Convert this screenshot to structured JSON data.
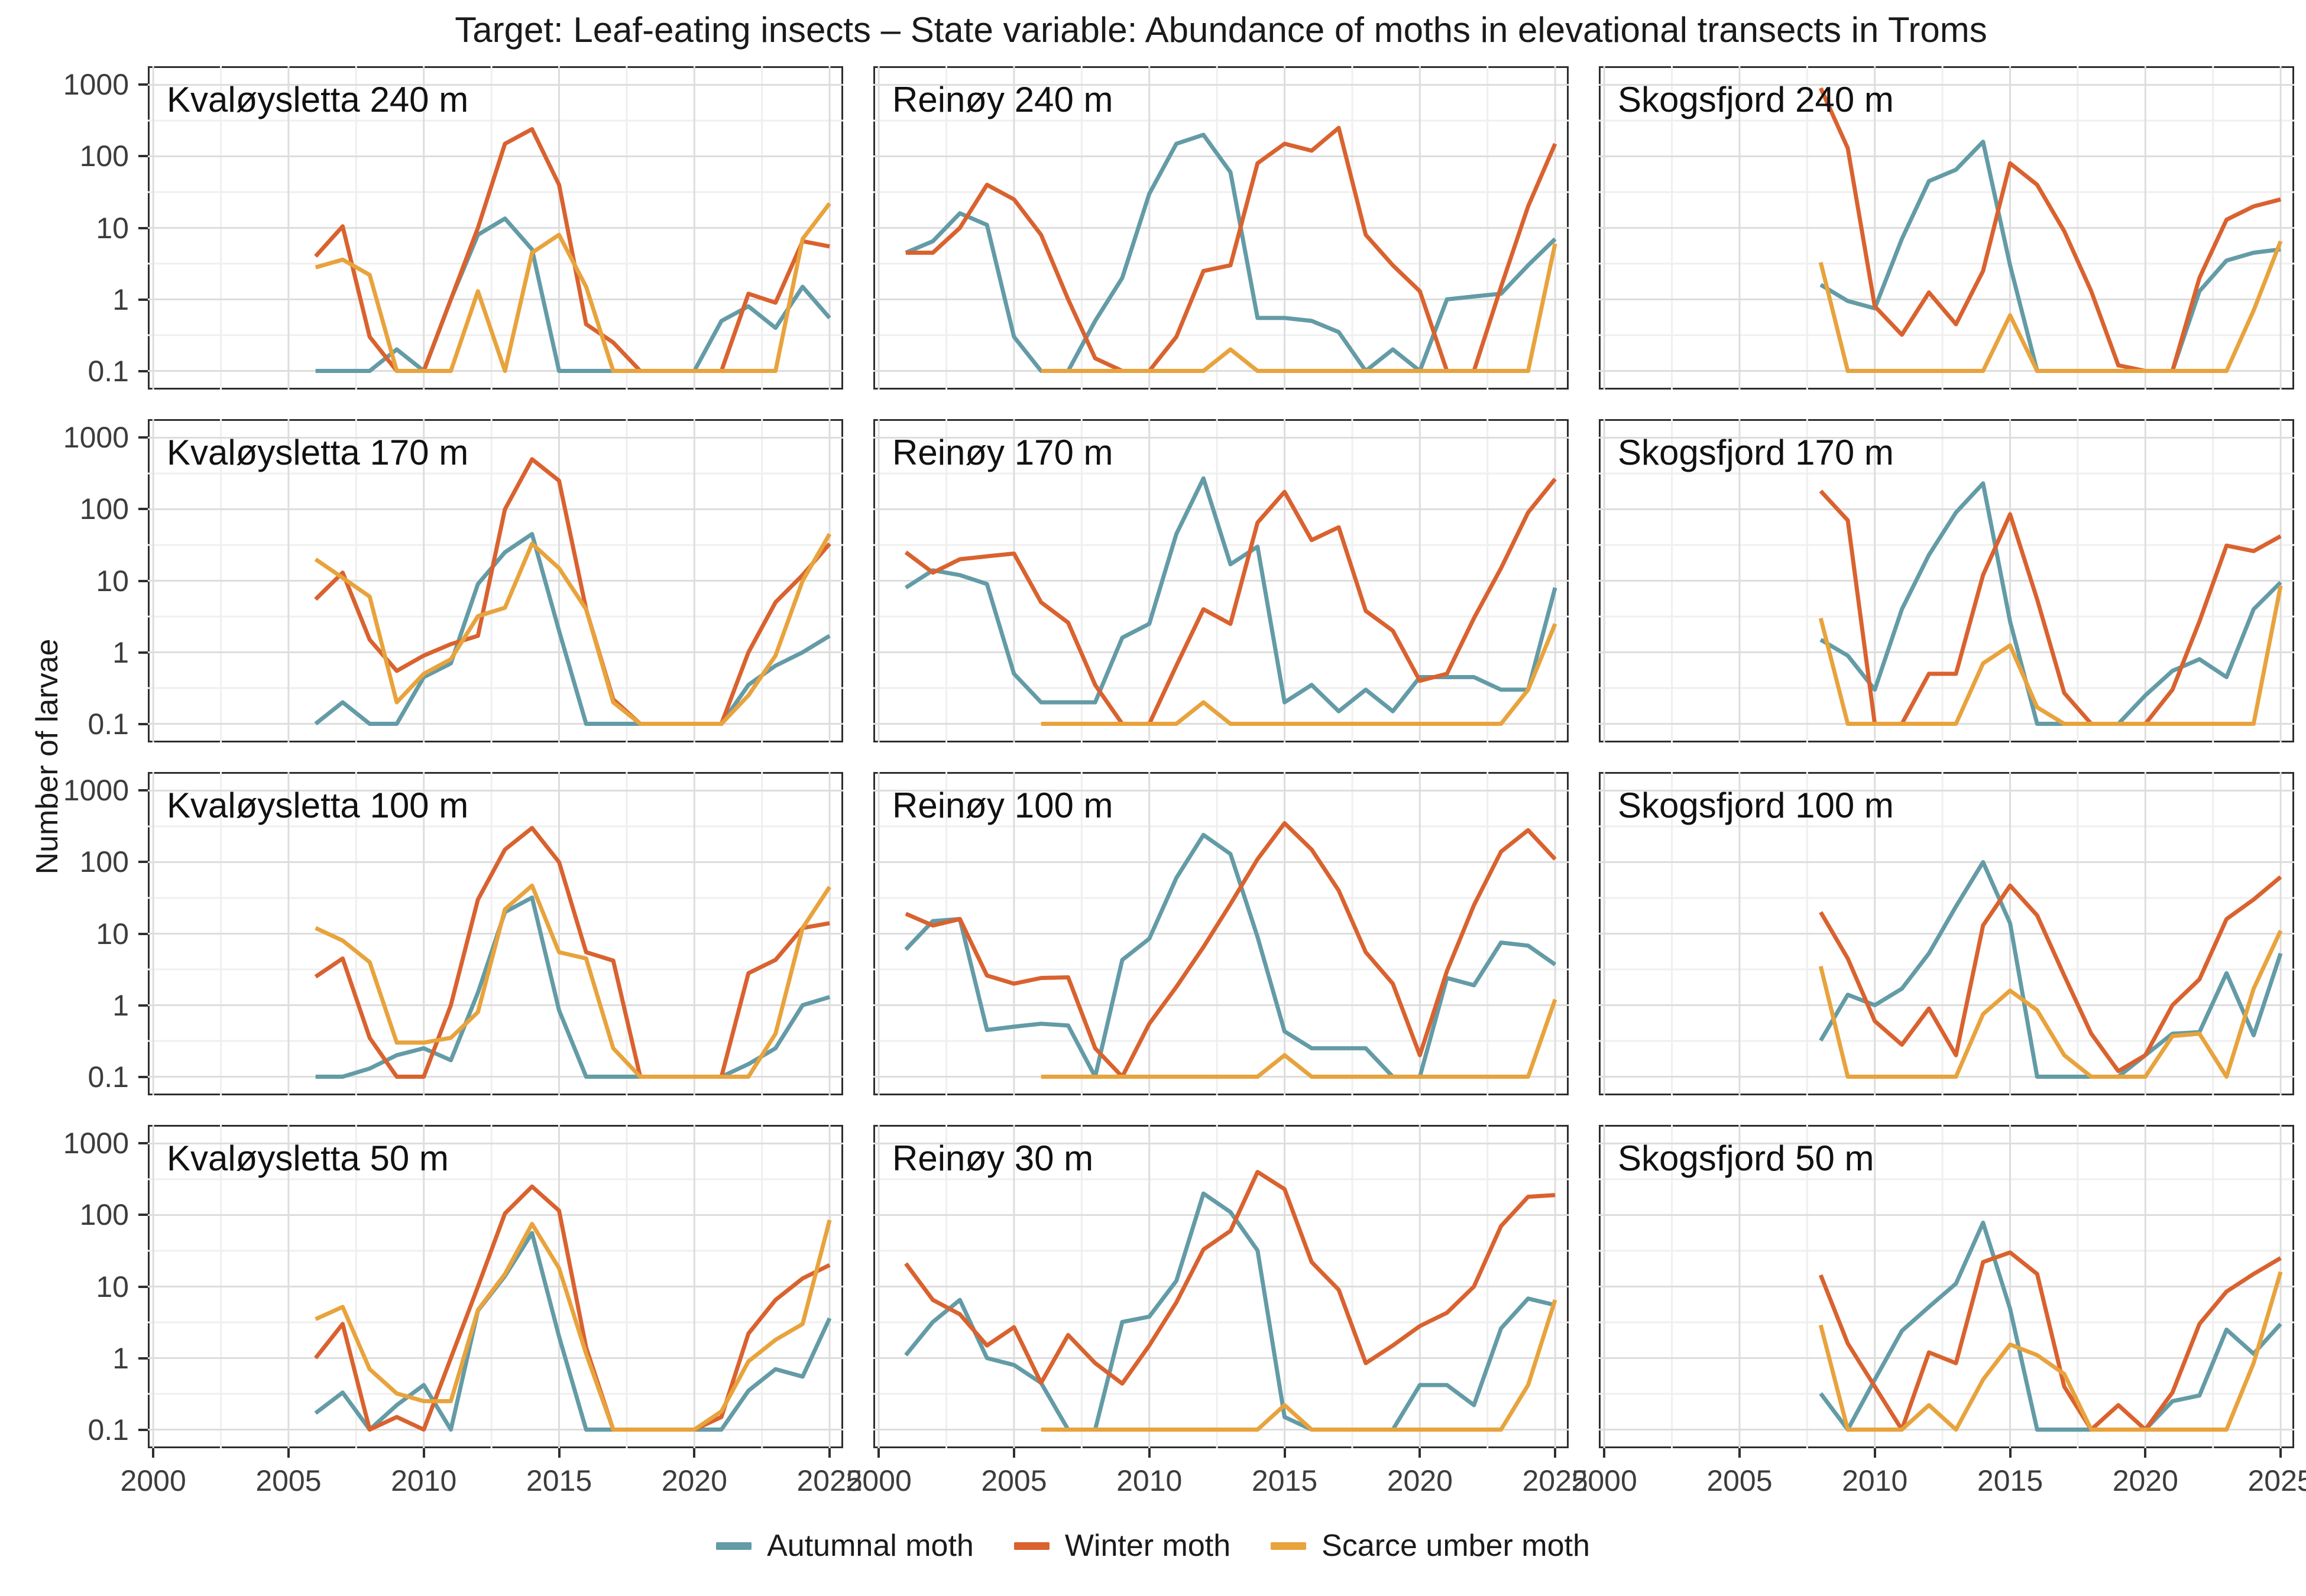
{
  "title": "Target: Leaf-eating insects – State variable: Abundance of moths in elevational transects in Troms",
  "y_axis": {
    "label": "Number of larvae",
    "ticks": [
      "1000",
      "100",
      "10",
      "1",
      "0.1"
    ]
  },
  "x_axis": {
    "ticks": [
      "2000",
      "2005",
      "2010",
      "2015",
      "2020",
      "2025"
    ]
  },
  "legend": {
    "items": [
      {
        "label": "Autumnal moth",
        "color": "#639BA6"
      },
      {
        "label": "Winter moth",
        "color": "#D9622F"
      },
      {
        "label": "Scarce umber moth",
        "color": "#E8A33D"
      }
    ]
  },
  "chart_data": {
    "type": "line",
    "x_range": [
      2000,
      2025
    ],
    "y_scale": "log10",
    "y_range": [
      0.1,
      1000
    ],
    "grid": true,
    "legend_position": "bottom",
    "series_names": [
      "Autumnal moth",
      "Winter moth",
      "Scarce umber moth"
    ],
    "panels": [
      {
        "title": "Kvaløysletta 240 m",
        "series": {
          "autumnal": {
            "start_year": 2006,
            "values": [
              0.1,
              0.1,
              0.1,
              0.2,
              0.1,
              1,
              8,
              13.5,
              5,
              0.1,
              0.1,
              0.1,
              0.1,
              0.1,
              0.1,
              0.5,
              0.8,
              0.4,
              1.5,
              0.55
            ]
          },
          "winter": {
            "start_year": 2006,
            "values": [
              4,
              10.5,
              0.3,
              0.1,
              0.1,
              1,
              10,
              150,
              240,
              40,
              0.45,
              0.25,
              0.1,
              0.1,
              0.1,
              0.1,
              1.2,
              0.9,
              6.5,
              5.5
            ]
          },
          "scarce": {
            "start_year": 2006,
            "values": [
              2.8,
              3.6,
              2.2,
              0.1,
              0.1,
              0.1,
              1.3,
              0.1,
              4.5,
              8,
              1.5,
              0.1,
              0.1,
              0.1,
              0.1,
              0.1,
              0.1,
              0.1,
              7,
              22
            ]
          }
        }
      },
      {
        "title": "Reinøy 240 m",
        "series": {
          "autumnal": {
            "start_year": 2001,
            "values": [
              4.5,
              6.5,
              16,
              11,
              0.3,
              0.1,
              0.1,
              0.5,
              2,
              30,
              150,
              200,
              60,
              0.55,
              0.55,
              0.5,
              0.35,
              0.1,
              0.2,
              0.1,
              1,
              1.1,
              1.2,
              3,
              7
            ]
          },
          "winter": {
            "start_year": 2001,
            "values": [
              4.5,
              4.5,
              10,
              40,
              25,
              8,
              1,
              0.15,
              0.1,
              0.1,
              0.3,
              2.5,
              3,
              80,
              150,
              120,
              250,
              8,
              3,
              1.3,
              0.1,
              0.1,
              1.5,
              20,
              150
            ]
          },
          "scarce": {
            "start_year": 2006,
            "values": [
              0.1,
              0.1,
              0.1,
              0.1,
              0.1,
              0.1,
              0.1,
              0.2,
              0.1,
              0.1,
              0.1,
              0.1,
              0.1,
              0.1,
              0.1,
              0.1,
              0.1,
              0.1,
              0.1,
              6
            ]
          }
        }
      },
      {
        "title": "Skogsfjord 240 m",
        "series": {
          "autumnal": {
            "start_year": 2008,
            "values": [
              1.6,
              0.95,
              0.75,
              7,
              45,
              65,
              160,
              3,
              0.1,
              0.1,
              0.1,
              0.1,
              0.1,
              0.1,
              1.3,
              3.5,
              4.5,
              5
            ]
          },
          "winter": {
            "start_year": 2008,
            "values": [
              900,
              130,
              0.8,
              0.32,
              1.25,
              0.45,
              2.5,
              80,
              40,
              9,
              1.3,
              0.12,
              0.1,
              0.1,
              2,
              13,
              20,
              25
            ]
          },
          "scarce": {
            "start_year": 2008,
            "values": [
              3.3,
              0.1,
              0.1,
              0.1,
              0.1,
              0.1,
              0.1,
              0.6,
              0.1,
              0.1,
              0.1,
              0.1,
              0.1,
              0.1,
              0.1,
              0.1,
              0.7,
              6.5
            ]
          }
        }
      },
      {
        "title": "Kvaløysletta 170 m",
        "series": {
          "autumnal": {
            "start_year": 2006,
            "values": [
              0.1,
              0.2,
              0.1,
              0.1,
              0.45,
              0.7,
              9,
              25,
              45,
              2,
              0.1,
              0.1,
              0.1,
              0.1,
              0.1,
              0.1,
              0.35,
              0.65,
              1,
              1.7
            ]
          },
          "winter": {
            "start_year": 2006,
            "values": [
              5.5,
              13,
              1.5,
              0.55,
              0.9,
              1.3,
              1.7,
              100,
              500,
              250,
              4,
              0.22,
              0.1,
              0.1,
              0.1,
              0.1,
              1,
              5,
              12,
              33
            ]
          },
          "scarce": {
            "start_year": 2006,
            "values": [
              20,
              11,
              6,
              0.2,
              0.5,
              0.8,
              3.2,
              4.2,
              33,
              15,
              4,
              0.2,
              0.1,
              0.1,
              0.1,
              0.1,
              0.25,
              0.9,
              10,
              45
            ]
          }
        }
      },
      {
        "title": "Reinøy 170 m",
        "series": {
          "autumnal": {
            "start_year": 2001,
            "values": [
              8,
              14,
              12,
              9,
              0.5,
              0.2,
              0.2,
              0.2,
              1.6,
              2.5,
              45,
              270,
              17,
              30,
              0.2,
              0.35,
              0.15,
              0.3,
              0.15,
              0.45,
              0.45,
              0.45,
              0.3,
              0.3,
              8
            ]
          },
          "winter": {
            "start_year": 2001,
            "values": [
              25,
              13,
              20,
              22,
              24,
              5,
              2.6,
              0.35,
              0.1,
              0.1,
              0.65,
              4,
              2.5,
              65,
              175,
              37,
              56,
              3.8,
              2,
              0.4,
              0.5,
              3,
              15,
              90,
              265
            ]
          },
          "scarce": {
            "start_year": 2006,
            "values": [
              0.1,
              0.1,
              0.1,
              0.1,
              0.1,
              0.1,
              0.2,
              0.1,
              0.1,
              0.1,
              0.1,
              0.1,
              0.1,
              0.1,
              0.1,
              0.1,
              0.1,
              0.1,
              0.3,
              2.5
            ]
          }
        }
      },
      {
        "title": "Skogsfjord 170 m",
        "series": {
          "autumnal": {
            "start_year": 2008,
            "values": [
              1.5,
              0.9,
              0.3,
              4,
              23,
              90,
              230,
              2.7,
              0.1,
              0.1,
              0.1,
              0.1,
              0.25,
              0.55,
              0.8,
              0.45,
              4,
              9.5
            ]
          },
          "winter": {
            "start_year": 2008,
            "values": [
              180,
              70,
              0.1,
              0.1,
              0.5,
              0.5,
              12,
              85,
              5.5,
              0.27,
              0.1,
              0.1,
              0.1,
              0.3,
              2.7,
              31,
              26,
              42
            ]
          },
          "scarce": {
            "start_year": 2008,
            "values": [
              3,
              0.1,
              0.1,
              0.1,
              0.1,
              0.1,
              0.7,
              1.25,
              0.17,
              0.1,
              0.1,
              0.1,
              0.1,
              0.1,
              0.1,
              0.1,
              0.1,
              8.5
            ]
          }
        }
      },
      {
        "title": "Kvaløysletta 100 m",
        "series": {
          "autumnal": {
            "start_year": 2006,
            "values": [
              0.1,
              0.1,
              0.13,
              0.2,
              0.25,
              0.17,
              1.5,
              20,
              32,
              0.85,
              0.1,
              0.1,
              0.1,
              0.1,
              0.1,
              0.1,
              0.15,
              0.25,
              1,
              1.3
            ]
          },
          "winter": {
            "start_year": 2006,
            "values": [
              2.5,
              4.5,
              0.35,
              0.1,
              0.1,
              1,
              30,
              150,
              300,
              100,
              5.5,
              4.2,
              0.1,
              0.1,
              0.1,
              0.1,
              2.8,
              4.3,
              12,
              14
            ]
          },
          "scarce": {
            "start_year": 2006,
            "values": [
              12,
              8,
              4,
              0.3,
              0.3,
              0.35,
              0.8,
              22,
              47,
              5.5,
              4.5,
              0.25,
              0.1,
              0.1,
              0.1,
              0.1,
              0.1,
              0.4,
              12,
              45
            ]
          }
        }
      },
      {
        "title": "Reinøy 100 m",
        "series": {
          "autumnal": {
            "start_year": 2001,
            "values": [
              6,
              15,
              16,
              0.45,
              0.5,
              0.55,
              0.52,
              0.1,
              4.3,
              8.5,
              60,
              240,
              130,
              9,
              0.43,
              0.25,
              0.25,
              0.25,
              0.1,
              0.1,
              2.4,
              1.9,
              7.5,
              6.8,
              3.7
            ]
          },
          "winter": {
            "start_year": 2001,
            "values": [
              19,
              13,
              16,
              2.6,
              2,
              2.4,
              2.45,
              0.25,
              0.1,
              0.55,
              1.8,
              6.5,
              26,
              110,
              350,
              150,
              40,
              5.5,
              2,
              0.2,
              3,
              25,
              140,
              280,
              110
            ]
          },
          "scarce": {
            "start_year": 2006,
            "values": [
              0.1,
              0.1,
              0.1,
              0.1,
              0.1,
              0.1,
              0.1,
              0.1,
              0.1,
              0.2,
              0.1,
              0.1,
              0.1,
              0.1,
              0.1,
              0.1,
              0.1,
              0.1,
              0.1,
              1.2
            ]
          }
        }
      },
      {
        "title": "Skogsfjord 100 m",
        "series": {
          "autumnal": {
            "start_year": 2008,
            "values": [
              0.32,
              1.4,
              1,
              1.7,
              5.3,
              24,
              100,
              14,
              0.1,
              0.1,
              0.1,
              0.1,
              0.2,
              0.4,
              0.42,
              2.8,
              0.38,
              5.3
            ]
          },
          "winter": {
            "start_year": 2008,
            "values": [
              20,
              4.5,
              0.6,
              0.28,
              0.9,
              0.2,
              13,
              47,
              18,
              2.6,
              0.4,
              0.12,
              0.2,
              1,
              2.3,
              16,
              30,
              62
            ]
          },
          "scarce": {
            "start_year": 2008,
            "values": [
              3.5,
              0.1,
              0.1,
              0.1,
              0.1,
              0.1,
              0.75,
              1.6,
              0.85,
              0.2,
              0.1,
              0.1,
              0.1,
              0.37,
              0.4,
              0.1,
              1.7,
              11
            ]
          }
        }
      },
      {
        "title": "Kvaløysletta 50 m",
        "series": {
          "autumnal": {
            "start_year": 2006,
            "values": [
              0.17,
              0.33,
              0.1,
              0.22,
              0.42,
              0.1,
              4.6,
              14,
              56,
              2,
              0.1,
              0.1,
              0.1,
              0.1,
              0.1,
              0.1,
              0.35,
              0.7,
              0.55,
              3.6
            ]
          },
          "winter": {
            "start_year": 2006,
            "values": [
              1,
              3,
              0.1,
              0.15,
              0.1,
              1,
              10,
              105,
              250,
              115,
              1.4,
              0.1,
              0.1,
              0.1,
              0.1,
              0.15,
              2.2,
              6.5,
              13,
              20
            ]
          },
          "scarce": {
            "start_year": 2006,
            "values": [
              3.5,
              5.2,
              0.7,
              0.32,
              0.25,
              0.25,
              4.7,
              15,
              75,
              18,
              1.15,
              0.1,
              0.1,
              0.1,
              0.1,
              0.18,
              0.9,
              1.8,
              3,
              85
            ]
          }
        }
      },
      {
        "title": "Reinøy 30 m",
        "series": {
          "autumnal": {
            "start_year": 2001,
            "values": [
              1.1,
              3.2,
              6.5,
              1,
              0.8,
              0.45,
              0.1,
              0.1,
              3.2,
              3.8,
              12,
              200,
              110,
              32,
              0.15,
              0.1,
              0.1,
              0.1,
              0.1,
              0.42,
              0.42,
              0.22,
              2.6,
              6.8,
              5.5
            ]
          },
          "winter": {
            "start_year": 2001,
            "values": [
              21,
              6.5,
              4.1,
              1.5,
              2.7,
              0.45,
              2.1,
              0.85,
              0.44,
              1.5,
              6,
              33,
              60,
              400,
              230,
              22,
              9,
              0.85,
              1.5,
              2.8,
              4.3,
              10,
              70,
              180,
              190
            ]
          },
          "scarce": {
            "start_year": 2006,
            "values": [
              0.1,
              0.1,
              0.1,
              0.1,
              0.1,
              0.1,
              0.1,
              0.1,
              0.1,
              0.22,
              0.1,
              0.1,
              0.1,
              0.1,
              0.1,
              0.1,
              0.1,
              0.1,
              0.42,
              6.5
            ]
          }
        }
      },
      {
        "title": "Skogsfjord 50 m",
        "series": {
          "autumnal": {
            "start_year": 2008,
            "values": [
              0.32,
              0.1,
              0.5,
              2.4,
              5.2,
              11,
              78,
              4.9,
              0.1,
              0.1,
              0.1,
              0.1,
              0.1,
              0.25,
              0.3,
              2.5,
              1.15,
              3
            ]
          },
          "winter": {
            "start_year": 2008,
            "values": [
              14.5,
              1.6,
              0.4,
              0.1,
              1.2,
              0.85,
              22,
              30,
              15,
              0.4,
              0.1,
              0.22,
              0.1,
              0.33,
              3,
              8.5,
              15,
              25
            ]
          },
          "scarce": {
            "start_year": 2008,
            "values": [
              2.9,
              0.1,
              0.1,
              0.1,
              0.22,
              0.1,
              0.5,
              1.55,
              1.1,
              0.6,
              0.1,
              0.1,
              0.1,
              0.1,
              0.1,
              0.1,
              0.85,
              16
            ]
          }
        }
      }
    ]
  }
}
